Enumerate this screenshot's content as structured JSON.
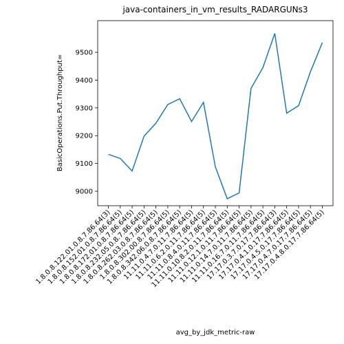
{
  "chart_data": {
    "type": "line",
    "title": "java-containers_in_vm_results_RADARGUNs3",
    "x_label": "avg_by_jdk_metric-raw",
    "y_label": "BasicOperations.Put.Throughput=",
    "categories": [
      "1.8.0.8.122.01.0.8.7.86.64(3)",
      "1.8.0.8.152.01.0.8.7.86.64(5)",
      "1.8.0.8.172.01.0.8.7.86.64(5)",
      "1.8.0.8.232.05.0.8.7.86.64(5)",
      "1.8.0.8.262.03.0.8.7.86.64(5)",
      "1.8.0.8.302.00.8.7.86.64(5)",
      "1.8.0.8.342.06.0.8.7.86.64(5)",
      "11.11.0.4.7.0.11.7.86.64(5)",
      "11.11.0.6.2.0.11.7.86.64(5)",
      "11.11.0.8.4.0.11.7.86.64(5)",
      "11.11.0.10.8.2.0.11.7.86.64(5)",
      "11.11.0.12.1.0.11.7.86.64(5)",
      "11.11.0.14.7.0.11.7.86.64(5)",
      "11.11.0.16.7.0.11.7.86.64(5)",
      "17.17.0.3.7.0.17.7.86.64(3)",
      "17.17.0.4.1.0.17.7.86.64(5)",
      "17.17.0.4.5.0.17.7.86.64(5)",
      "17.17.0.4.7.0.17.7.86.64(5)",
      "17.17.0.4.8.0.17.7.86.64(5)"
    ],
    "series": [
      {
        "name": "BasicOperations.Put.Throughput=",
        "color": "#1f77b4",
        "values": [
          9133,
          9118,
          9073,
          9198,
          9245,
          9312,
          9333,
          9251,
          9320,
          9088,
          8973,
          8994,
          9370,
          9445,
          9568,
          9281,
          9308,
          9430,
          9535
        ]
      }
    ],
    "ylim": [
      8948,
      9614
    ],
    "yticks": [
      9000,
      9100,
      9200,
      9300,
      9400,
      9500
    ],
    "grid": false
  }
}
